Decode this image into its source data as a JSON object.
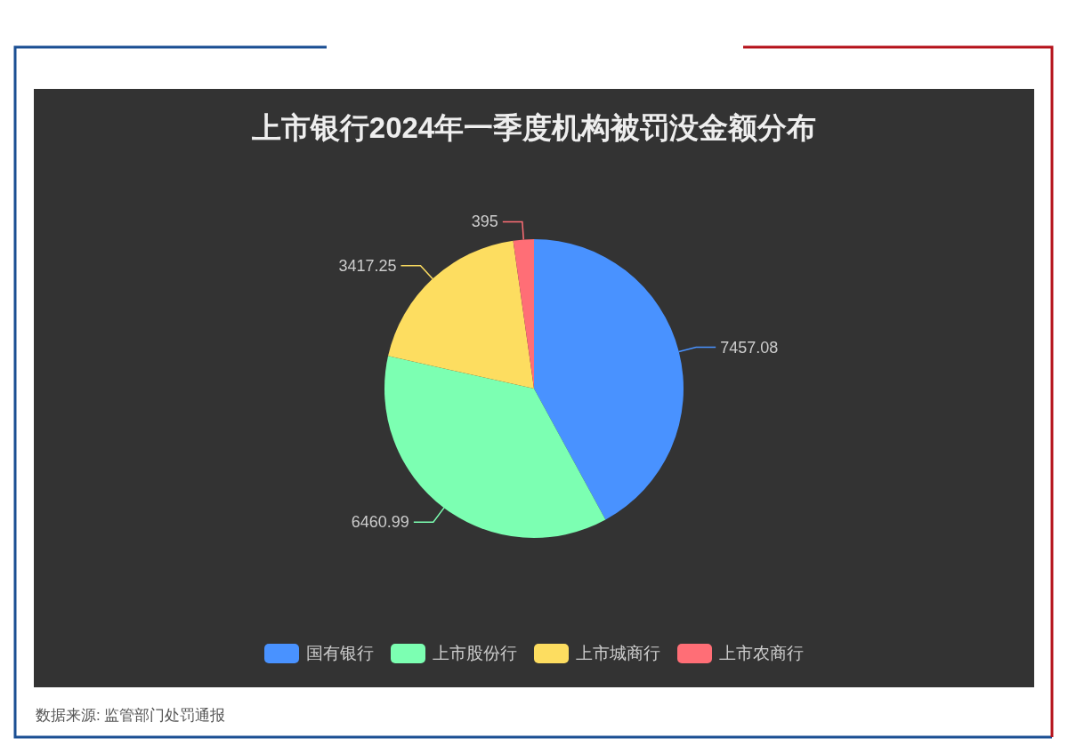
{
  "chart_data": {
    "type": "pie",
    "title": "上市银行2024年一季度机构被罚没金额分布",
    "categories": [
      "国有银行",
      "上市股份行",
      "上市城商行",
      "上市农商行"
    ],
    "values": [
      7457.08,
      6460.99,
      3417.25,
      395
    ],
    "colors": [
      "#4992ff",
      "#7cffb2",
      "#fddd60",
      "#ff6e76"
    ],
    "data_labels": true,
    "legend": "bottom",
    "annotations": [
      "数据来源: 监管部门处罚通报"
    ]
  }
}
